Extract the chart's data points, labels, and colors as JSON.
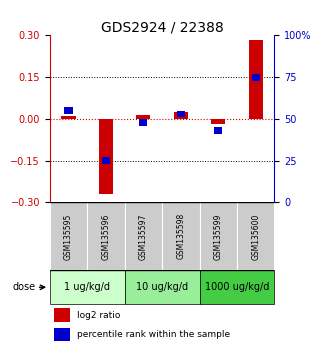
{
  "title": "GDS2924 / 22388",
  "samples": [
    "GSM135595",
    "GSM135596",
    "GSM135597",
    "GSM135598",
    "GSM135599",
    "GSM135600"
  ],
  "log2_ratio": [
    0.01,
    -0.27,
    0.015,
    0.025,
    -0.02,
    0.285
  ],
  "percentile_rank": [
    55,
    25,
    48,
    53,
    43,
    75
  ],
  "bar_color_red": "#cc0000",
  "bar_color_blue": "#0000cc",
  "ylim_left": [
    -0.3,
    0.3
  ],
  "ylim_right": [
    0,
    100
  ],
  "yticks_left": [
    -0.3,
    -0.15,
    0,
    0.15,
    0.3
  ],
  "yticks_right": [
    0,
    25,
    50,
    75,
    100
  ],
  "ytick_labels_right": [
    "0",
    "25",
    "50",
    "75",
    "100%"
  ],
  "hlines": [
    0.15,
    -0.15
  ],
  "dose_groups": [
    {
      "label": "1 ug/kg/d",
      "samples": [
        0,
        1
      ],
      "color": "#ccffcc"
    },
    {
      "label": "10 ug/kg/d",
      "samples": [
        2,
        3
      ],
      "color": "#99ee99"
    },
    {
      "label": "1000 ug/kg/d",
      "samples": [
        4,
        5
      ],
      "color": "#44cc44"
    }
  ],
  "dose_label": "dose",
  "legend_red": "log2 ratio",
  "legend_blue": "percentile rank within the sample",
  "bg_sample_color": "#cccccc",
  "title_fontsize": 10,
  "tick_fontsize": 7,
  "sample_fontsize": 5.5,
  "dose_fontsize": 7,
  "legend_fontsize": 6.5
}
